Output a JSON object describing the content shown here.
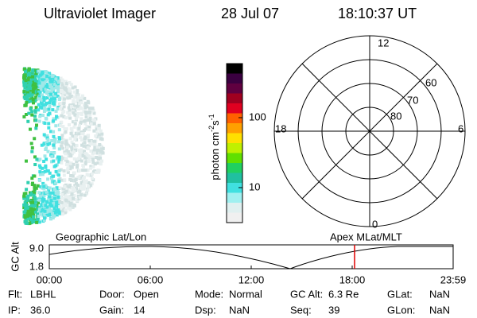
{
  "header": {
    "title": "Ultraviolet Imager",
    "date": "28 Jul 07",
    "time": "18:10:37 UT"
  },
  "colorbar": {
    "label": "photon cm",
    "exp1": "-2",
    "unit2": "s",
    "exp2": "-1",
    "ticks": [
      "100",
      "10"
    ]
  },
  "polar": {
    "mlt_labels": [
      "12",
      "18",
      "6",
      "0"
    ],
    "lat_labels": [
      "60",
      "70",
      "80"
    ]
  },
  "altitude_plot": {
    "axis_label": "GC Alt",
    "left_title": "Geographic Lat/Lon",
    "right_title": "Apex MLat/MLT",
    "yticks": [
      "9.0",
      "1.8"
    ],
    "xticks": [
      "00:00",
      "06:00",
      "12:00",
      "18:00",
      "23:59"
    ]
  },
  "status": [
    [
      {
        "label": "Flt:",
        "value": "LBHL"
      },
      {
        "label": "Door:",
        "value": "Open"
      },
      {
        "label": "Mode:",
        "value": "Normal"
      },
      {
        "label": "GC Alt:",
        "value": "6.3 Re"
      },
      {
        "label": "GLat:",
        "value": "NaN"
      }
    ],
    [
      {
        "label": "IP:",
        "value": "36.0"
      },
      {
        "label": "Gain:",
        "value": "14"
      },
      {
        "label": "Dsp:",
        "value": "NaN"
      },
      {
        "label": "Seq:",
        "value": "39"
      },
      {
        "label": "GLon:",
        "value": "NaN"
      }
    ]
  ]
}
